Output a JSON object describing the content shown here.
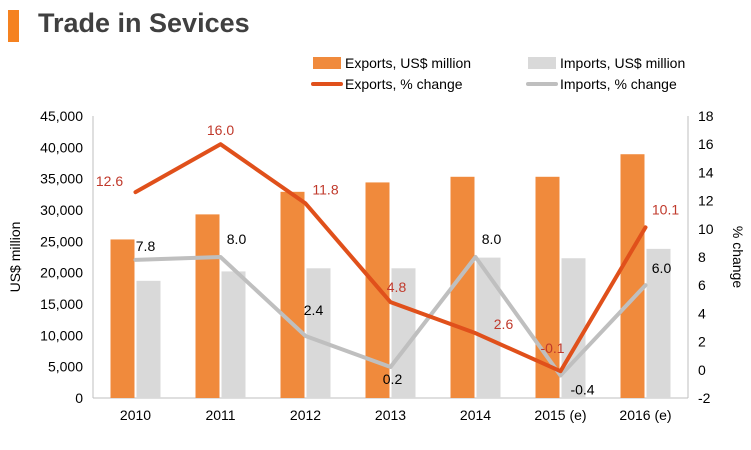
{
  "colors": {
    "accent": "#f58220",
    "exports_bar": "#f08a3c",
    "imports_bar": "#d9d9d9",
    "exports_line": "#e0501b",
    "imports_line": "#bfbfbf",
    "exports_label": "#c0392b",
    "imports_label": "#000000"
  },
  "chart_data": {
    "type": "bar",
    "title": "Trade in Sevices",
    "categories": [
      "2010",
      "2011",
      "2012",
      "2013",
      "2014",
      "2015 (e)",
      "2016 (e)"
    ],
    "ylabel": "US$ million",
    "y2label": "% change",
    "ylim": [
      0,
      45000
    ],
    "y2lim": [
      -2,
      18
    ],
    "yticks": [
      "0",
      "5,000",
      "10,000",
      "15,000",
      "20,000",
      "25,000",
      "30,000",
      "35,000",
      "40,000",
      "45,000"
    ],
    "y2ticks": [
      "-2",
      "0",
      "2",
      "4",
      "6",
      "8",
      "10",
      "12",
      "14",
      "16",
      "18"
    ],
    "legend_position": "top-right",
    "series": [
      {
        "name": "Exports, US$ million",
        "kind": "bar",
        "axis": "left",
        "values": [
          25300,
          29300,
          32900,
          34400,
          35300,
          35300,
          38900
        ]
      },
      {
        "name": "Imports, US$ million",
        "kind": "bar",
        "axis": "left",
        "values": [
          18700,
          20200,
          20700,
          20700,
          22400,
          22300,
          23800
        ]
      },
      {
        "name": "Exports, % change",
        "kind": "line",
        "axis": "right",
        "values": [
          12.6,
          16.0,
          11.8,
          4.8,
          2.6,
          -0.1,
          10.1
        ],
        "labels": [
          "12.6",
          "16.0",
          "11.8",
          "4.8",
          "2.6",
          "-0.1",
          "10.1"
        ]
      },
      {
        "name": "Imports, % change",
        "kind": "line",
        "axis": "right",
        "values": [
          7.8,
          8.0,
          2.4,
          0.2,
          8.0,
          -0.4,
          6.0
        ],
        "labels": [
          "7.8",
          "8.0",
          "2.4",
          "0.2",
          "8.0",
          "-0.4",
          "6.0"
        ]
      }
    ]
  }
}
